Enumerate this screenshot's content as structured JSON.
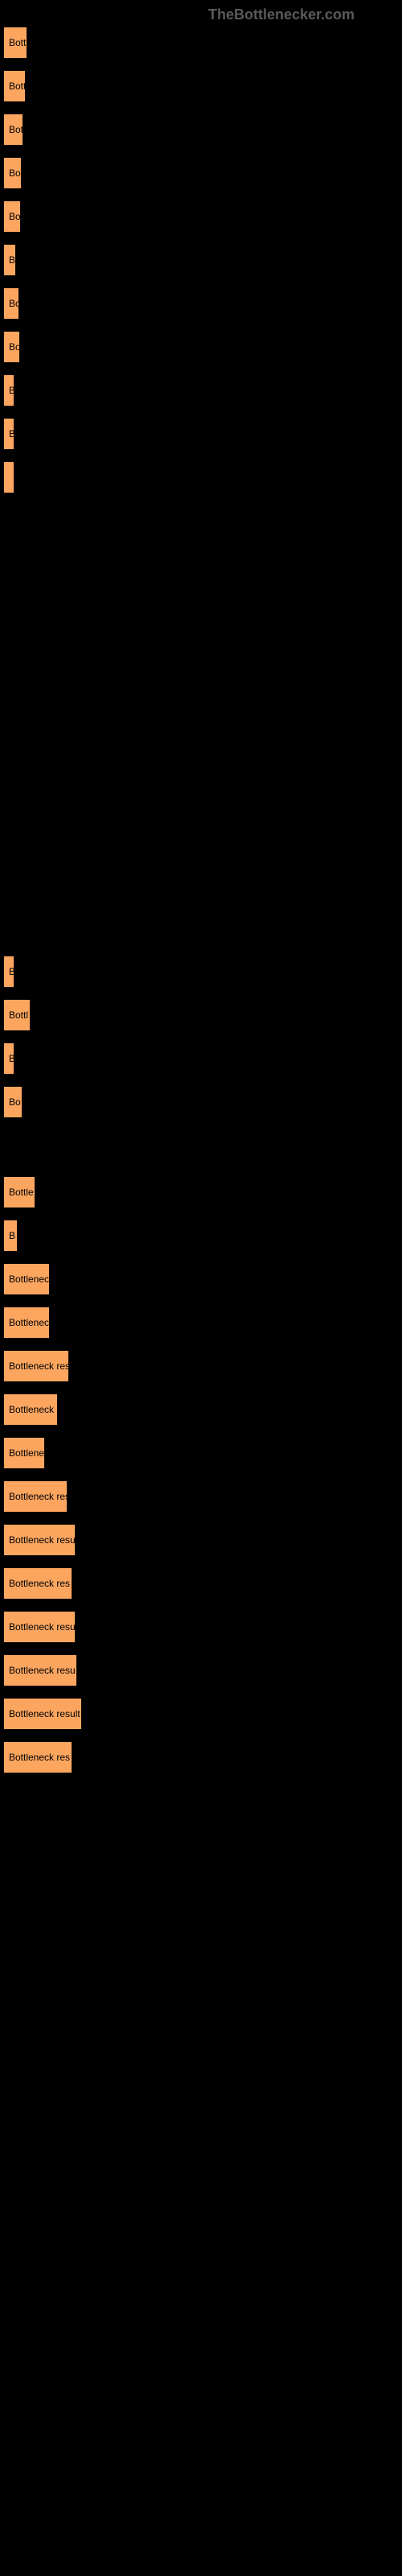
{
  "header": "TheBottlenecker.com",
  "bar_color": "#fba55f",
  "bar_border": "#000000",
  "background": "#000000",
  "header_color": "#5a5a5a",
  "rows": [
    {
      "width": 30,
      "inside": "Bott",
      "after": ""
    },
    {
      "width": 28,
      "inside": "Bott",
      "after": ""
    },
    {
      "width": 25,
      "inside": "Bot",
      "after": ""
    },
    {
      "width": 23,
      "inside": "Bo",
      "after": ""
    },
    {
      "width": 22,
      "inside": "Bo",
      "after": ""
    },
    {
      "width": 16,
      "inside": "B",
      "after": ""
    },
    {
      "width": 20,
      "inside": "Bo",
      "after": ""
    },
    {
      "width": 21,
      "inside": "Bo",
      "after": ""
    },
    {
      "width": 14,
      "inside": "B",
      "after": ""
    },
    {
      "width": 14,
      "inside": "B",
      "after": ""
    },
    {
      "width": 4,
      "inside": "",
      "after": ""
    },
    {
      "gap": 560
    },
    {
      "width": 12,
      "inside": "B",
      "after": ""
    },
    {
      "width": 34,
      "inside": "Bottl",
      "after": ""
    },
    {
      "width": 11,
      "inside": "B",
      "after": ""
    },
    {
      "width": 24,
      "inside": "Bo",
      "after": ""
    },
    {
      "gap": 58
    },
    {
      "width": 40,
      "inside": "Bottle",
      "after": ""
    },
    {
      "width": 18,
      "inside": "B",
      "after": ""
    },
    {
      "width": 58,
      "inside": "Bottleneck",
      "after": ""
    },
    {
      "width": 58,
      "inside": "Bottleneck",
      "after": ""
    },
    {
      "width": 82,
      "inside": "Bottleneck res",
      "after": ""
    },
    {
      "width": 68,
      "inside": "Bottleneck r",
      "after": ""
    },
    {
      "width": 52,
      "inside": "Bottlene",
      "after": ""
    },
    {
      "width": 80,
      "inside": "Bottleneck res",
      "after": ""
    },
    {
      "width": 90,
      "inside": "Bottleneck resu",
      "after": ""
    },
    {
      "width": 86,
      "inside": "Bottleneck res",
      "after": ""
    },
    {
      "width": 90,
      "inside": "Bottleneck resu",
      "after": ""
    },
    {
      "width": 92,
      "inside": "Bottleneck resu",
      "after": ""
    },
    {
      "width": 98,
      "inside": "Bottleneck result",
      "after": ""
    },
    {
      "width": 86,
      "inside": "Bottleneck res",
      "after": ""
    }
  ]
}
